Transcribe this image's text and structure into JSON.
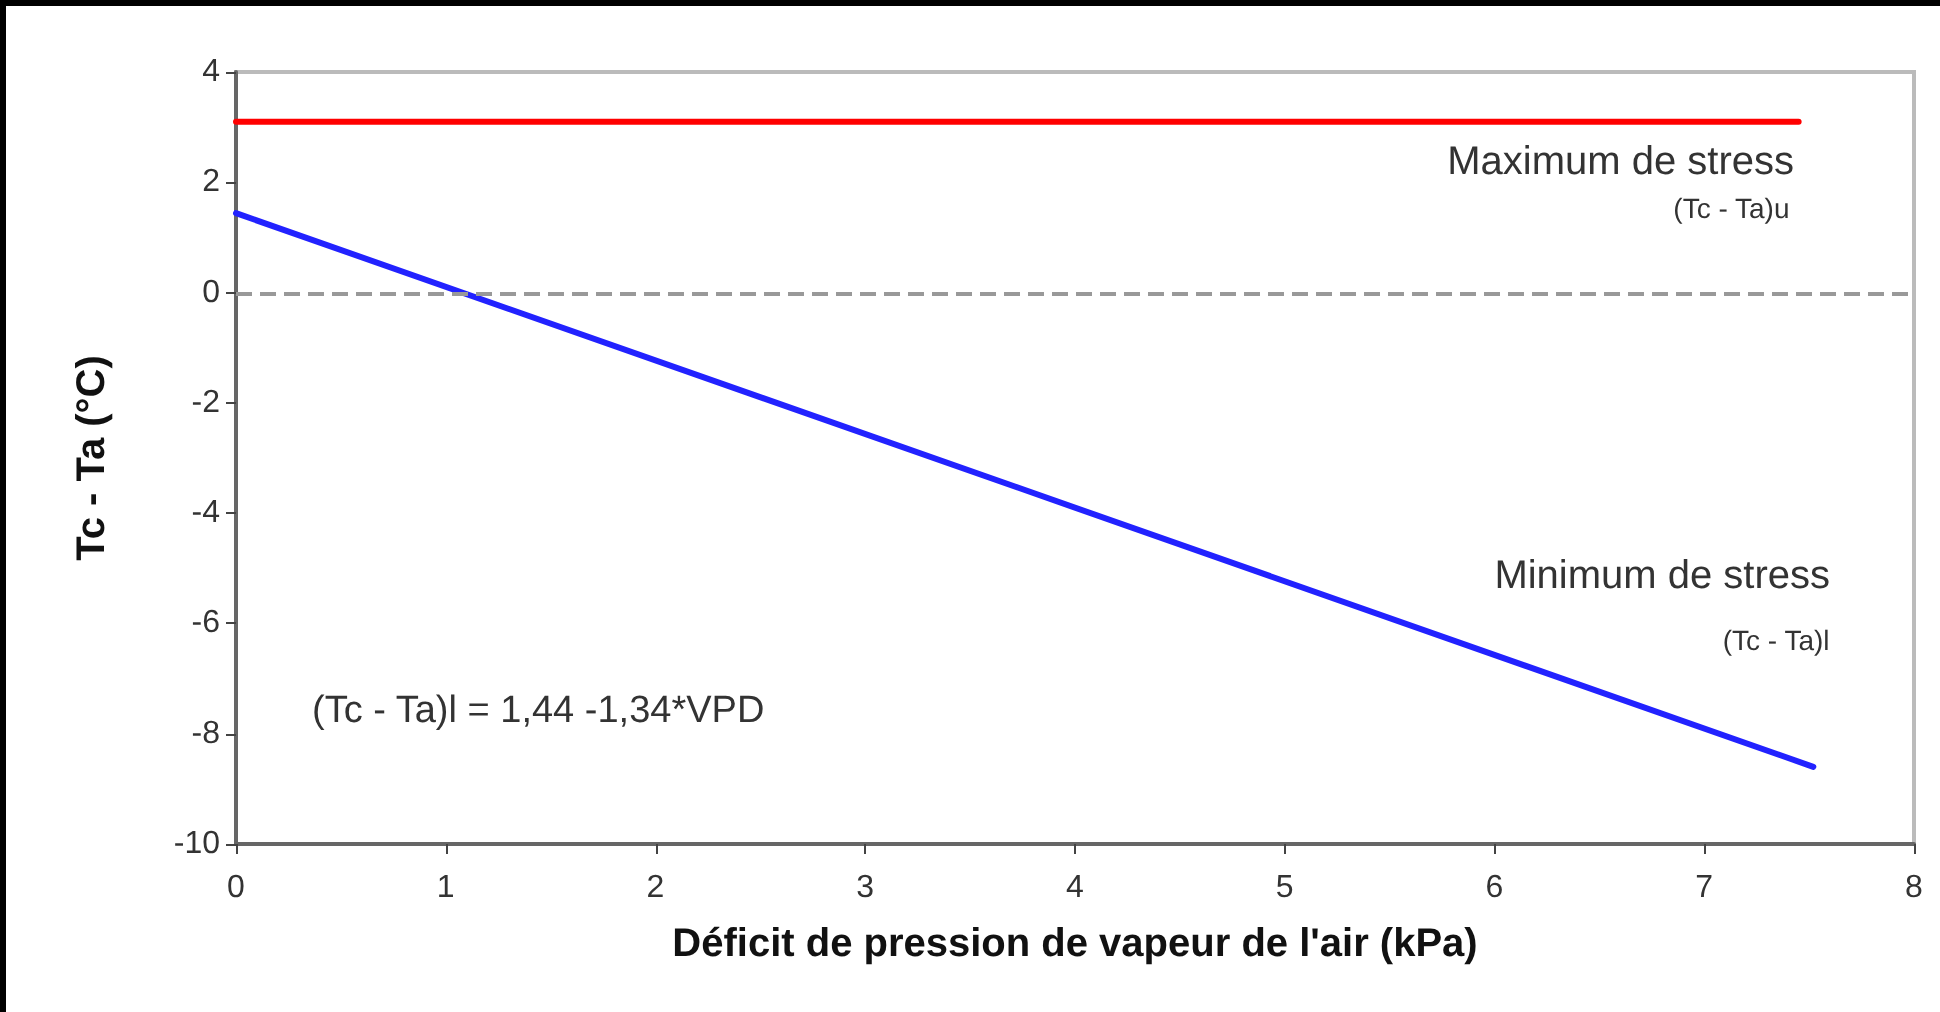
{
  "chart_data": {
    "type": "line",
    "xlabel": "Déficit de pression de vapeur de l'air (kPa)",
    "ylabel": "Tc - Ta (°C)",
    "xlim": [
      0,
      8
    ],
    "xticks": [
      0,
      1,
      2,
      3,
      4,
      5,
      6,
      7,
      8
    ],
    "ylim": [
      -10,
      4
    ],
    "yticks": [
      -10,
      -8,
      -6,
      -4,
      -2,
      0,
      2,
      4
    ],
    "grid": false,
    "marker": "none",
    "line_style": "solid",
    "series": [
      {
        "color": "#ff0000",
        "x": [
          0,
          7.45
        ],
        "values": [
          3.1,
          3.1
        ]
      },
      {
        "color": "#2222ff",
        "x": [
          0,
          7.52
        ],
        "values": [
          1.44,
          -8.6
        ]
      }
    ],
    "ref_lines": [
      {
        "axis": "y",
        "value": 0,
        "label": null,
        "color": "#999999",
        "line_style": "dashed"
      }
    ],
    "annotations": [
      "Maximum de stress",
      "(Tc - Ta)u",
      "Minimum de stress",
      "(Tc - Ta)l",
      "(Tc - Ta)l = 1,44 -1,34*VPD"
    ]
  }
}
